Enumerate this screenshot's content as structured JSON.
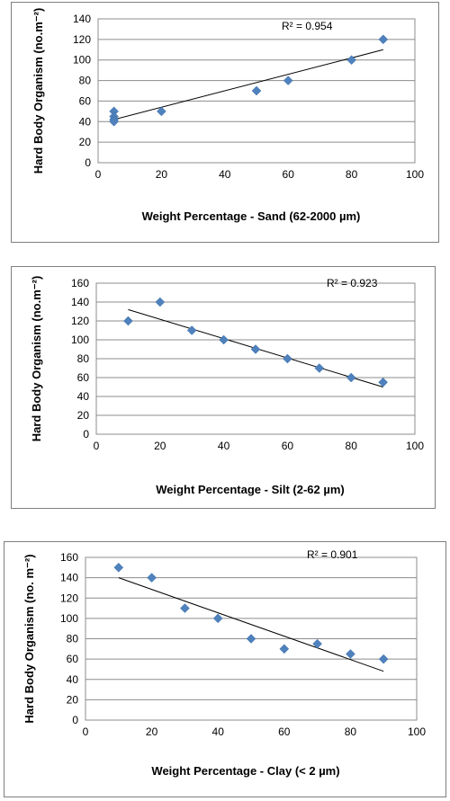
{
  "chart_data": [
    {
      "type": "scatter",
      "xlabel": "Weight Percentage - Sand (62-2000 µm)",
      "ylabel": "Hard Body Organism (no.m⁻²)",
      "xlim": [
        0,
        100
      ],
      "ylim": [
        0,
        140
      ],
      "xticks": [
        0,
        20,
        40,
        60,
        80,
        100
      ],
      "yticks": [
        0,
        20,
        40,
        60,
        80,
        100,
        120,
        140
      ],
      "x": [
        5,
        5,
        5,
        5,
        20,
        50,
        60,
        80,
        90
      ],
      "y": [
        50,
        45,
        42,
        40,
        50,
        70,
        80,
        100,
        120
      ],
      "trendline": {
        "x": [
          5,
          90
        ],
        "y": [
          42,
          110
        ]
      },
      "annotation": "R² = 0.954",
      "grid": "horizontal",
      "marker_color": "#4f81bd"
    },
    {
      "type": "scatter",
      "xlabel": "Weight Percentage - Silt (2-62 µm)",
      "ylabel": "Hard Body Organism (no.m⁻²)",
      "xlim": [
        0,
        100
      ],
      "ylim": [
        0,
        160
      ],
      "xticks": [
        0,
        20,
        40,
        60,
        80,
        100
      ],
      "yticks": [
        0,
        20,
        40,
        60,
        80,
        100,
        120,
        140,
        160
      ],
      "x": [
        10,
        20,
        30,
        40,
        50,
        60,
        70,
        80,
        90
      ],
      "y": [
        120,
        140,
        110,
        100,
        90,
        80,
        70,
        60,
        55
      ],
      "trendline": {
        "x": [
          10,
          90
        ],
        "y": [
          132,
          50
        ]
      },
      "annotation": "R² = 0.923",
      "grid": "horizontal",
      "marker_color": "#4f81bd"
    },
    {
      "type": "scatter",
      "xlabel": "Weight Percentage - Clay (< 2 µm)",
      "ylabel": "Hard Body Organism (no. m⁻²)",
      "xlim": [
        0,
        100
      ],
      "ylim": [
        0,
        160
      ],
      "xticks": [
        0,
        20,
        40,
        60,
        80,
        100
      ],
      "yticks": [
        0,
        20,
        40,
        60,
        80,
        100,
        120,
        140,
        160
      ],
      "x": [
        10,
        20,
        30,
        40,
        50,
        60,
        70,
        80,
        90
      ],
      "y": [
        150,
        140,
        110,
        100,
        80,
        70,
        75,
        65,
        60
      ],
      "trendline": {
        "x": [
          10,
          90
        ],
        "y": [
          140,
          48
        ]
      },
      "annotation": "R² = 0.901",
      "grid": "horizontal",
      "marker_color": "#4f81bd"
    }
  ]
}
